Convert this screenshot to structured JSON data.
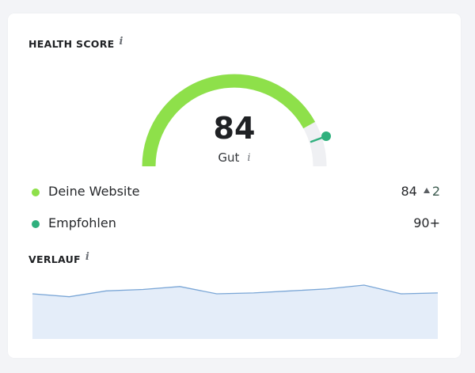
{
  "health_score": {
    "title": "HEALTH SCORE",
    "info_icon": "i",
    "score": "84",
    "rating": "Gut",
    "rating_info_icon": "i",
    "gauge": {
      "value": 84,
      "max": 100,
      "recommended": 90,
      "fill_color": "#8ee04a",
      "track_color": "#eff0f3",
      "marker_color": "#2fb07d"
    }
  },
  "legend": [
    {
      "label": "Deine Website",
      "value": "84",
      "delta": "2",
      "delta_icon": "triangle-up",
      "dot_color": "#8ee04a"
    },
    {
      "label": "Empfohlen",
      "value": "90+",
      "dot_color": "#2fb07d"
    }
  ],
  "history": {
    "title": "VERLAUF",
    "info_icon": "i"
  },
  "chart_data": {
    "type": "area",
    "title": "VERLAUF",
    "xlabel": "",
    "ylabel": "",
    "x": [
      1,
      2,
      3,
      4,
      5,
      6,
      7,
      8,
      9,
      10,
      11,
      12
    ],
    "values": [
      82,
      81,
      83,
      83.5,
      84.5,
      82,
      82.3,
      83,
      83.7,
      85,
      82,
      82.3
    ],
    "line_color": "#7aa6d6",
    "fill_color": "#e4edf9",
    "grid": false
  }
}
